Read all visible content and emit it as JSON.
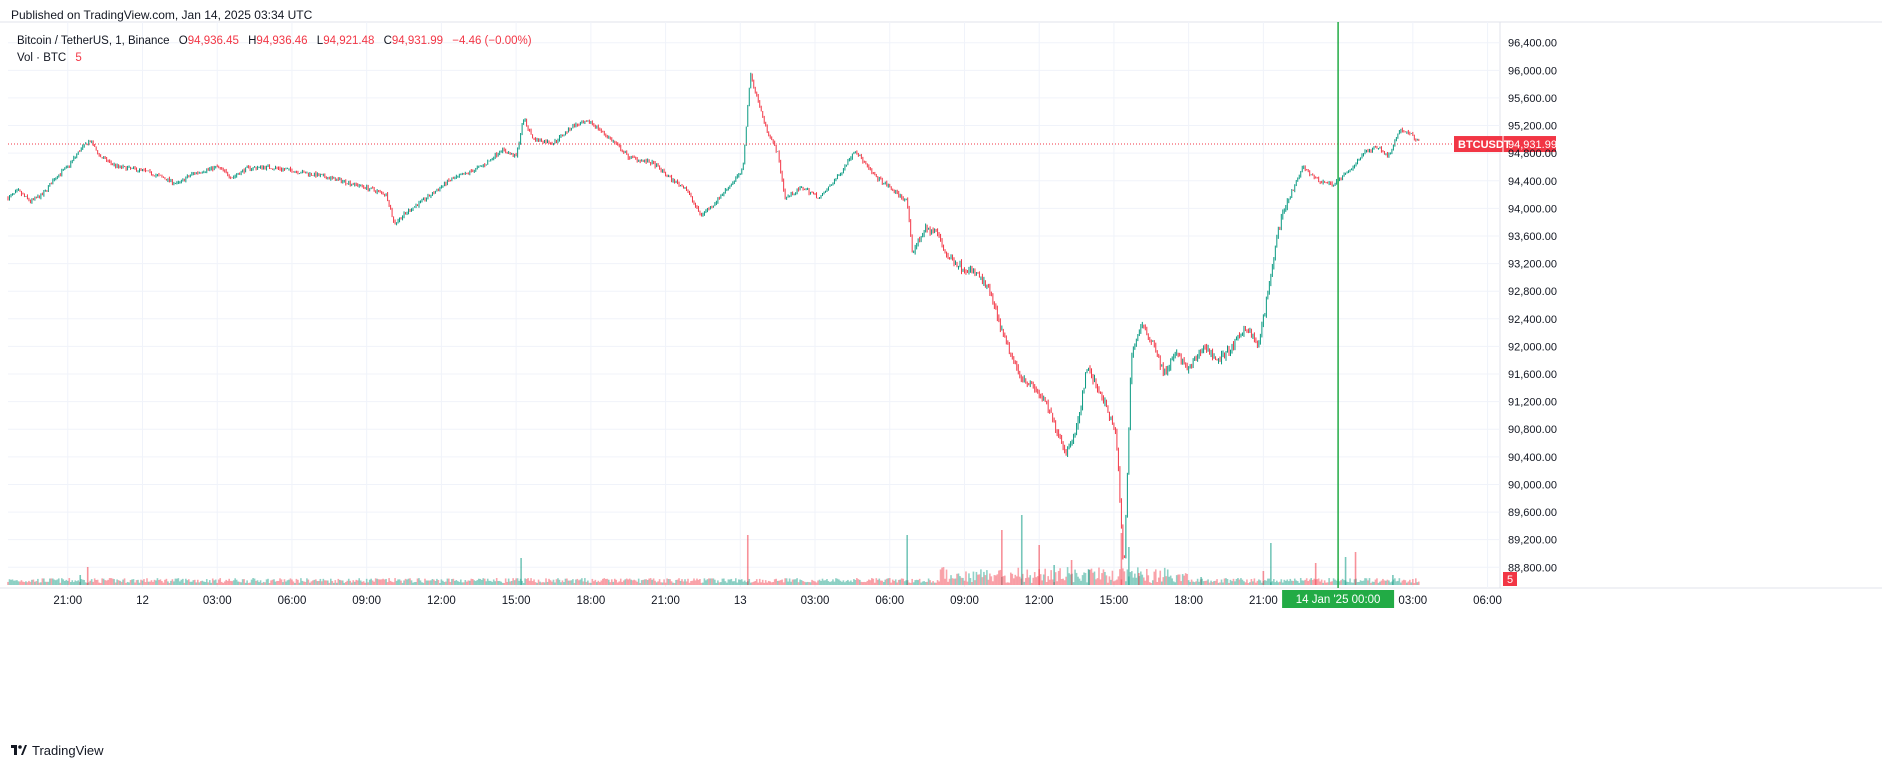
{
  "published": "Published on TradingView.com, Jan 14, 2025 03:34 UTC",
  "legend": {
    "symbol": "Bitcoin / TetherUS, 1, Binance",
    "o_label": "O",
    "o": "94,936.45",
    "h_label": "H",
    "h": "94,936.46",
    "l_label": "L",
    "l": "94,921.48",
    "c_label": "C",
    "c": "94,931.99",
    "change": "−4.46 (−0.00%)",
    "vol_label": "Vol · BTC",
    "vol_value": "5"
  },
  "brand": "TradingView",
  "colors": {
    "up": "#089981",
    "down": "#f23645",
    "crosshair": "#22ab45",
    "grid": "#f0f3fa",
    "text": "#131722"
  },
  "chart_data": {
    "type": "candlestick",
    "title": "Bitcoin / TetherUS, 1, Binance",
    "timeframe": "1 minute",
    "last_price": 94931.99,
    "last_price_label": "94,931.99",
    "price_tag_symbol": "BTCUSDT",
    "volume_tag": "5",
    "ylim": [
      88500,
      96700
    ],
    "y_ticks": [
      {
        "value": 96400,
        "label": "96,400.00"
      },
      {
        "value": 96000,
        "label": "96,000.00"
      },
      {
        "value": 95600,
        "label": "95,600.00"
      },
      {
        "value": 95200,
        "label": "95,200.00"
      },
      {
        "value": 94800,
        "label": "94,800.00"
      },
      {
        "value": 94400,
        "label": "94,400.00"
      },
      {
        "value": 94000,
        "label": "94,000.00"
      },
      {
        "value": 93600,
        "label": "93,600.00"
      },
      {
        "value": 93200,
        "label": "93,200.00"
      },
      {
        "value": 92800,
        "label": "92,800.00"
      },
      {
        "value": 92400,
        "label": "92,400.00"
      },
      {
        "value": 92000,
        "label": "92,000.00"
      },
      {
        "value": 91600,
        "label": "91,600.00"
      },
      {
        "value": 91200,
        "label": "91,200.00"
      },
      {
        "value": 90800,
        "label": "90,800.00"
      },
      {
        "value": 90400,
        "label": "90,400.00"
      },
      {
        "value": 90000,
        "label": "90,000.00"
      },
      {
        "value": 89600,
        "label": "89,600.00"
      },
      {
        "value": 89200,
        "label": "89,200.00"
      },
      {
        "value": 88800,
        "label": "88,800.00"
      }
    ],
    "x_ticks": [
      {
        "h": 21,
        "label": "21:00"
      },
      {
        "h": 24,
        "label": "12"
      },
      {
        "h": 27,
        "label": "03:00"
      },
      {
        "h": 30,
        "label": "06:00"
      },
      {
        "h": 33,
        "label": "09:00"
      },
      {
        "h": 36,
        "label": "12:00"
      },
      {
        "h": 39,
        "label": "15:00"
      },
      {
        "h": 42,
        "label": "18:00"
      },
      {
        "h": 45,
        "label": "21:00"
      },
      {
        "h": 48,
        "label": "13"
      },
      {
        "h": 51,
        "label": "03:00"
      },
      {
        "h": 54,
        "label": "06:00"
      },
      {
        "h": 57,
        "label": "09:00"
      },
      {
        "h": 60,
        "label": "12:00"
      },
      {
        "h": 63,
        "label": "15:00"
      },
      {
        "h": 66,
        "label": "18:00"
      },
      {
        "h": 69,
        "label": "21:00"
      },
      {
        "h": 75,
        "label": "03:00"
      },
      {
        "h": 78,
        "label": "06:00"
      }
    ],
    "x_range_hours": [
      18.6,
      78.5
    ],
    "crosshair": {
      "h": 72,
      "label": "14 Jan '25   00:00"
    },
    "price_path": [
      [
        18.6,
        94150
      ],
      [
        19.0,
        94250
      ],
      [
        19.5,
        94100
      ],
      [
        20.0,
        94200
      ],
      [
        20.5,
        94450
      ],
      [
        21.0,
        94600
      ],
      [
        21.5,
        94850
      ],
      [
        21.9,
        94980
      ],
      [
        22.3,
        94750
      ],
      [
        23.0,
        94600
      ],
      [
        24.0,
        94550
      ],
      [
        24.8,
        94450
      ],
      [
        25.4,
        94350
      ],
      [
        26.0,
        94500
      ],
      [
        27.0,
        94600
      ],
      [
        27.6,
        94450
      ],
      [
        28.2,
        94580
      ],
      [
        29.0,
        94600
      ],
      [
        30.0,
        94550
      ],
      [
        31.0,
        94480
      ],
      [
        32.0,
        94400
      ],
      [
        33.0,
        94300
      ],
      [
        33.8,
        94200
      ],
      [
        34.1,
        93780
      ],
      [
        34.8,
        94000
      ],
      [
        35.6,
        94200
      ],
      [
        36.3,
        94400
      ],
      [
        37.0,
        94500
      ],
      [
        37.8,
        94650
      ],
      [
        38.4,
        94850
      ],
      [
        39.0,
        94750
      ],
      [
        39.3,
        95300
      ],
      [
        39.7,
        95000
      ],
      [
        40.5,
        94950
      ],
      [
        41.3,
        95200
      ],
      [
        42.0,
        95250
      ],
      [
        42.8,
        95000
      ],
      [
        43.5,
        94750
      ],
      [
        44.5,
        94650
      ],
      [
        45.3,
        94400
      ],
      [
        45.8,
        94300
      ],
      [
        46.4,
        93900
      ],
      [
        46.9,
        94050
      ],
      [
        47.5,
        94300
      ],
      [
        48.1,
        94550
      ],
      [
        48.4,
        95950
      ],
      [
        49.0,
        95200
      ],
      [
        49.5,
        94800
      ],
      [
        49.8,
        94150
      ],
      [
        50.5,
        94300
      ],
      [
        51.2,
        94150
      ],
      [
        52.0,
        94500
      ],
      [
        52.6,
        94850
      ],
      [
        53.3,
        94500
      ],
      [
        54.0,
        94300
      ],
      [
        54.7,
        94100
      ],
      [
        54.9,
        93350
      ],
      [
        55.4,
        93700
      ],
      [
        55.9,
        93650
      ],
      [
        56.3,
        93300
      ],
      [
        56.9,
        93150
      ],
      [
        57.5,
        93050
      ],
      [
        58.0,
        92800
      ],
      [
        58.6,
        92100
      ],
      [
        59.2,
        91600
      ],
      [
        59.8,
        91400
      ],
      [
        60.3,
        91150
      ],
      [
        60.7,
        90800
      ],
      [
        61.1,
        90450
      ],
      [
        61.6,
        90950
      ],
      [
        61.9,
        91700
      ],
      [
        62.5,
        91300
      ],
      [
        63.1,
        90700
      ],
      [
        63.4,
        88700
      ],
      [
        63.7,
        91900
      ],
      [
        64.1,
        92300
      ],
      [
        64.6,
        92050
      ],
      [
        65.0,
        91600
      ],
      [
        65.5,
        91900
      ],
      [
        66.0,
        91650
      ],
      [
        66.6,
        92000
      ],
      [
        67.2,
        91800
      ],
      [
        67.8,
        92000
      ],
      [
        68.3,
        92300
      ],
      [
        68.8,
        92000
      ],
      [
        69.2,
        92800
      ],
      [
        69.6,
        93700
      ],
      [
        70.1,
        94200
      ],
      [
        70.6,
        94600
      ],
      [
        71.2,
        94400
      ],
      [
        71.8,
        94350
      ],
      [
        72.5,
        94550
      ],
      [
        73.0,
        94800
      ],
      [
        73.6,
        94900
      ],
      [
        74.0,
        94750
      ],
      [
        74.5,
        95150
      ],
      [
        75.0,
        95050
      ],
      [
        75.3,
        94950
      ]
    ],
    "volume_spikes": [
      [
        21.5,
        10
      ],
      [
        21.8,
        18
      ],
      [
        39.2,
        27
      ],
      [
        48.3,
        50
      ],
      [
        54.7,
        50
      ],
      [
        58.5,
        55
      ],
      [
        59.3,
        70
      ],
      [
        60.0,
        40
      ],
      [
        60.6,
        20
      ],
      [
        61.3,
        25
      ],
      [
        62.0,
        15
      ],
      [
        63.3,
        52
      ],
      [
        63.6,
        38
      ],
      [
        64.0,
        12
      ],
      [
        66.5,
        8
      ],
      [
        69.0,
        14
      ],
      [
        69.3,
        42
      ],
      [
        71.1,
        22
      ],
      [
        72.3,
        28
      ],
      [
        72.7,
        33
      ],
      [
        74.2,
        10
      ]
    ]
  }
}
